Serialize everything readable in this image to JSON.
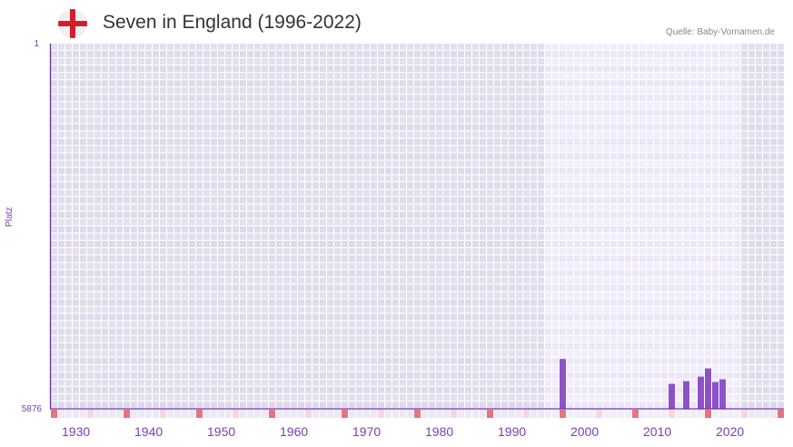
{
  "header": {
    "title": "Seven in England (1996-2022)",
    "source": "Quelle: Baby-Vornamen.de",
    "flag_icon": "england-flag-icon"
  },
  "colors": {
    "bar": "#8e52c8",
    "axis": "#6a2fa0",
    "highlight_bg": "#efeafa",
    "outside_bg": "#e3dfee",
    "decade_marker": "#e57480",
    "half_decade_marker": "#f4d6de"
  },
  "chart_data": {
    "type": "bar",
    "title": "Seven in England (1996-2022)",
    "xlabel": "",
    "ylabel": "Platz",
    "ylim": [
      5876,
      1
    ],
    "y_inverted": true,
    "ytick_labels": [
      "1",
      "5876"
    ],
    "xlim": [
      1928,
      2028
    ],
    "xtick_labels": [
      "1930",
      "1940",
      "1950",
      "1960",
      "1970",
      "1980",
      "1990",
      "2000",
      "2010",
      "2020"
    ],
    "highlight_range": [
      1996,
      2022
    ],
    "grid": true,
    "legend": null,
    "categories": [
      "1998",
      "2013",
      "2015",
      "2017",
      "2018",
      "2019",
      "2020"
    ],
    "values": [
      5074,
      5474,
      5431,
      5358,
      5226,
      5445,
      5401
    ],
    "series": [
      {
        "name": "Platz",
        "x": [
          1998,
          2013,
          2015,
          2017,
          2018,
          2019,
          2020
        ],
        "values": [
          5074,
          5474,
          5431,
          5358,
          5226,
          5445,
          5401
        ]
      }
    ]
  }
}
